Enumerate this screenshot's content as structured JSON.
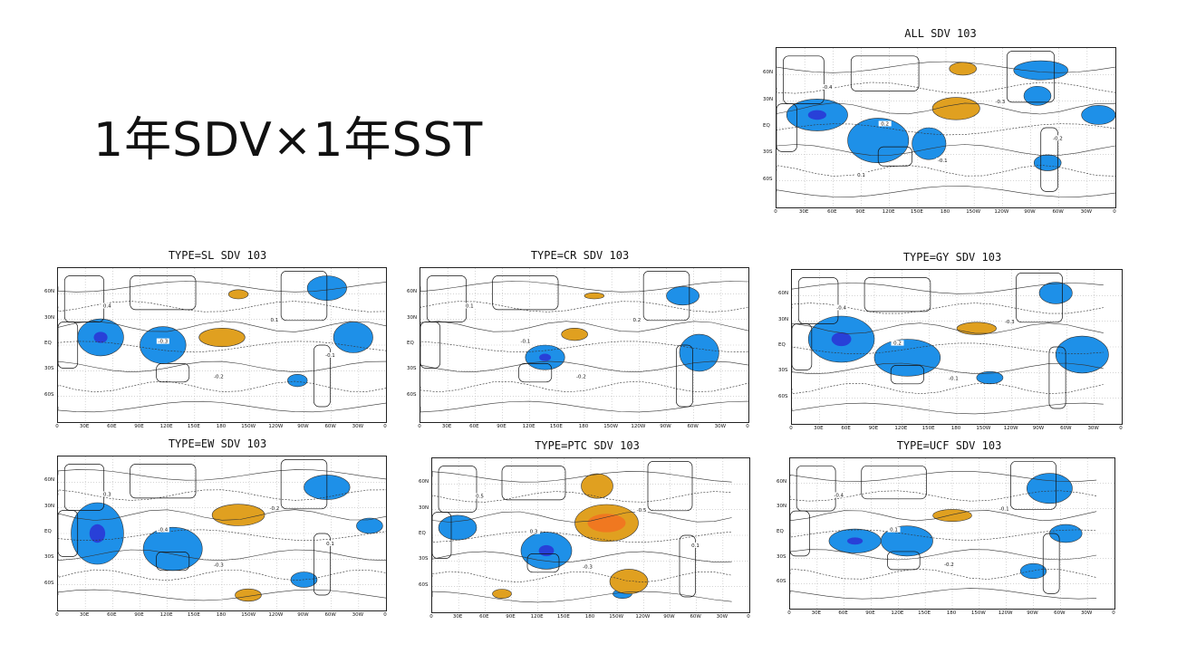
{
  "slide": {
    "title": "1年SDV×1年SST"
  },
  "colors": {
    "negative": "#1e90e8",
    "strong_negative": "#2840d8",
    "positive": "#e0a020",
    "strong_positive": "#f07820",
    "contour": "#333333"
  },
  "axes": {
    "lat_ticks": [
      "60N",
      "30N",
      "EQ",
      "30S",
      "60S"
    ],
    "lon_ticks": [
      "0",
      "30E",
      "60E",
      "90E",
      "120E",
      "150E",
      "180",
      "150W",
      "120W",
      "90W",
      "60W",
      "30W",
      "0"
    ]
  },
  "panels": [
    {
      "id": "all",
      "title": "ALL SDV 103",
      "contour_labels": [
        "-0.4",
        "0.2",
        "-0.1",
        "-0.3",
        "-0.2",
        "0.1"
      ]
    },
    {
      "id": "sl",
      "title": "TYPE=SL SDV 103",
      "contour_labels": [
        "0.4",
        "-0.3",
        "-0.2",
        "0.1",
        "-0.1"
      ]
    },
    {
      "id": "cr",
      "title": "TYPE=CR SDV 103",
      "contour_labels": [
        "0.1",
        "-0.1",
        "-0.2",
        "0.2"
      ]
    },
    {
      "id": "gy",
      "title": "TYPE=GY SDV 103",
      "contour_labels": [
        "-0.4",
        "0.2",
        "-0.1",
        "-0.3"
      ]
    },
    {
      "id": "ew",
      "title": "TYPE=EW SDV 103",
      "contour_labels": [
        "0.3",
        "-0.4",
        "-0.3",
        "-0.2",
        "0.1"
      ]
    },
    {
      "id": "ptc",
      "title": "TYPE=PTC SDV 103",
      "contour_labels": [
        "0.5",
        "0.3",
        "-0.3",
        "-0.5",
        "0.1"
      ]
    },
    {
      "id": "ucf",
      "title": "TYPE=UCF SDV 103",
      "contour_labels": [
        "-0.4",
        "0.1",
        "-0.2",
        "-0.1"
      ]
    }
  ]
}
